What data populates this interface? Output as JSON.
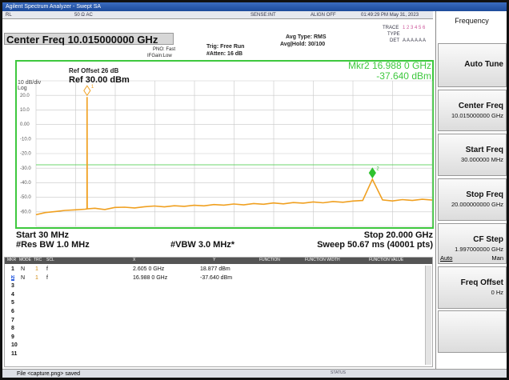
{
  "title_bar": "Agilent Spectrum Analyzer - Swept SA",
  "status_row": [
    "RL",
    "50 Ω AC",
    "SENSE:INT",
    "ALIGN OFF",
    "01:49:29 PM May 31, 2023"
  ],
  "header": {
    "center_freq": "Center Freq 10.015000000 GHz",
    "pno": "PNO: Fast",
    "if_gain": "IFGain:Low",
    "trig": "Trig: Free Run",
    "atten": "#Atten: 16 dB",
    "avg_type": "Avg Type: RMS",
    "avg_hold": "Avg|Hold: 30/100",
    "trace_label": "TRACE",
    "trace_nums": "1 2 3 4 5 6",
    "type_label": "TYPE",
    "det_label": "DET",
    "det": "A A A A A A"
  },
  "chart_data": {
    "type": "line",
    "ref_offset": "Ref Offset 26 dB",
    "ref_level": "Ref 30.00 dBm",
    "scale": "10 dB/div",
    "scale_type": "Log",
    "marker_readout": [
      "Mkr2 16.988 0 GHz",
      "-37.640 dBm"
    ],
    "start_label": "Start 30 MHz",
    "stop_label": "Stop 20.000 GHz",
    "res_bw": "#Res BW 1.0 MHz",
    "vbw": "#VBW 3.0 MHz*",
    "sweep": "Sweep 50.67 ms (40001 pts)",
    "xlim": [
      0.03,
      20
    ],
    "ylim": [
      -70,
      30
    ],
    "yticks": [
      {
        "value": 20,
        "label": "20.0"
      },
      {
        "value": 10,
        "label": "10.0"
      },
      {
        "value": 0,
        "label": "0.00"
      },
      {
        "value": -10,
        "label": "-10.0"
      },
      {
        "value": -20,
        "label": "-20.0"
      },
      {
        "value": -30,
        "label": "-30.0"
      },
      {
        "value": -40,
        "label": "-40.0"
      },
      {
        "value": -50,
        "label": "-50.0"
      },
      {
        "value": -60,
        "label": "-60.0"
      }
    ],
    "grid": true,
    "x": [
      0.03,
      0.5,
      1.0,
      1.5,
      2.0,
      2.5,
      2.6,
      2.605,
      2.61,
      3,
      3.5,
      4,
      4.5,
      5,
      5.5,
      6,
      6.5,
      7,
      7.5,
      8,
      8.5,
      9,
      9.5,
      10,
      10.5,
      11,
      11.5,
      12,
      12.5,
      13,
      13.5,
      14,
      14.5,
      15,
      15.5,
      16,
      16.5,
      16.988,
      17.5,
      18,
      18.5,
      19,
      19.5,
      20
    ],
    "series": [
      {
        "color": "#f0a020",
        "values": [
          -62,
          -60.5,
          -59.8,
          -59,
          -58.6,
          -58.2,
          -58,
          18.877,
          -57.9,
          -57.5,
          -58.4,
          -57,
          -56.8,
          -57.3,
          -56.5,
          -56,
          -56.6,
          -55.8,
          -56.2,
          -55.5,
          -55.9,
          -55,
          -55.4,
          -54.6,
          -55.2,
          -54.3,
          -54.8,
          -53.9,
          -54.5,
          -53.6,
          -54,
          -53.2,
          -53.8,
          -52.9,
          -53.4,
          -52.6,
          -52.2,
          -37.64,
          -51.8,
          -52.5,
          -51.6,
          -52.2,
          -51.4,
          -51.9
        ]
      }
    ],
    "markers": [
      {
        "label": "1",
        "x": 2.605,
        "y": 18.877,
        "color": "#f0a020"
      },
      {
        "label": "2",
        "x": 16.988,
        "y": -37.64,
        "color": "#2ec22e"
      }
    ]
  },
  "marker_table": {
    "headers": [
      "MKR",
      "MODE",
      "TRC",
      "SCL",
      "X",
      "Y",
      "FUNCTION",
      "FUNCTION WIDTH",
      "FUNCTION VALUE"
    ],
    "rows": [
      [
        "1",
        "N",
        "1",
        "f",
        "2.605 0 GHz",
        "18.877 dBm"
      ],
      [
        "2",
        "N",
        "1",
        "f",
        "16.988 0 GHz",
        "-37.640 dBm"
      ],
      [
        "3"
      ],
      [
        "4"
      ],
      [
        "5"
      ],
      [
        "6"
      ],
      [
        "7"
      ],
      [
        "8"
      ],
      [
        "9"
      ],
      [
        "10"
      ],
      [
        "11"
      ]
    ]
  },
  "softkeys": {
    "title": "Frequency",
    "keys": [
      {
        "label": "Auto Tune"
      },
      {
        "label": "Center Freq",
        "value": "10.015000000 GHz"
      },
      {
        "label": "Start Freq",
        "value": "30.000000 MHz"
      },
      {
        "label": "Stop Freq",
        "value": "20.000000000 GHz"
      },
      {
        "label": "CF Step",
        "value": "1.997000000 GHz",
        "options": [
          "Auto",
          "Man"
        ]
      },
      {
        "label": "Freq Offset",
        "value": "0 Hz"
      }
    ]
  },
  "status_bar": {
    "message": "File <capture.png> saved",
    "status": "STATUS"
  }
}
